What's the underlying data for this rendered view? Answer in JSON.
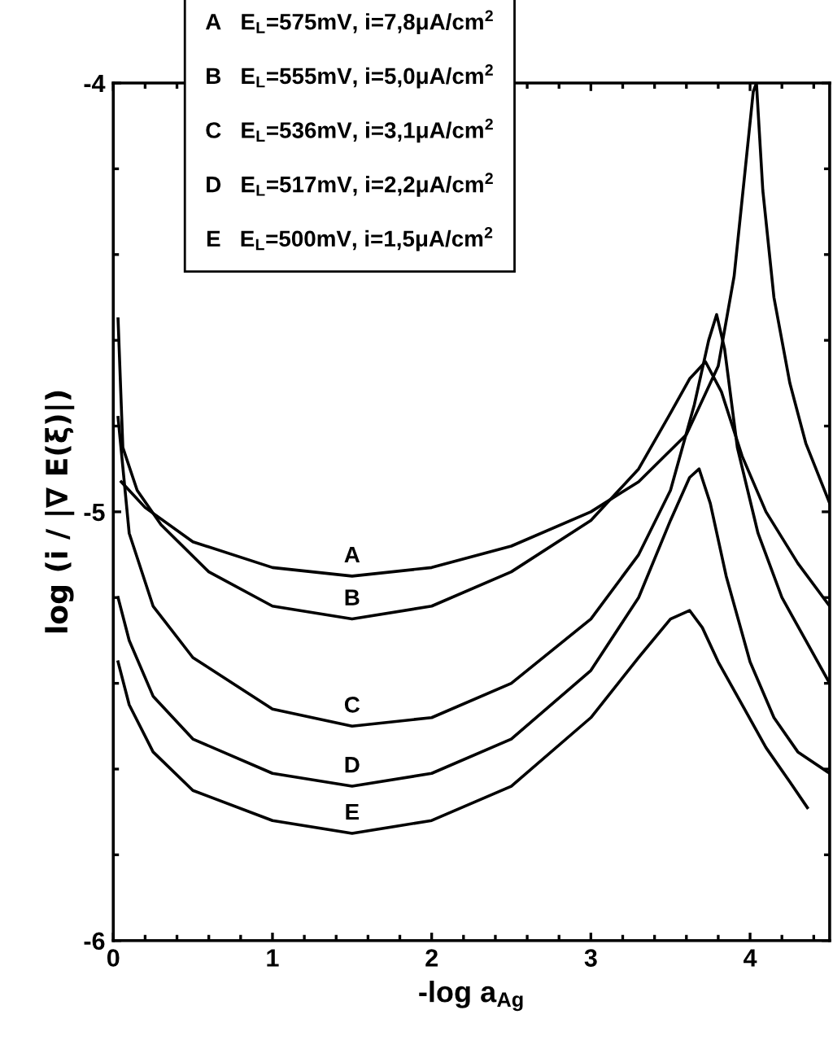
{
  "chart_data": {
    "type": "line",
    "xlabel": "-log a$_{Ag}$",
    "ylabel": "log (i / |∇ E(ξ)|)",
    "xlim": [
      0,
      4.5
    ],
    "ylim": [
      -6,
      -4
    ],
    "xticks": [
      0,
      {
        "value": 0.2,
        "label": null
      },
      {
        "value": 0.4,
        "label": null
      },
      {
        "value": 0.6,
        "label": null
      },
      {
        "value": 0.8,
        "label": null
      },
      1,
      {
        "value": 1.2,
        "label": null
      },
      {
        "value": 1.4,
        "label": null
      },
      {
        "value": 1.6,
        "label": null
      },
      {
        "value": 1.8,
        "label": null
      },
      2,
      {
        "value": 2.2,
        "label": null
      },
      {
        "value": 2.4,
        "label": null
      },
      {
        "value": 2.6,
        "label": null
      },
      {
        "value": 2.8,
        "label": null
      },
      3,
      {
        "value": 3.2,
        "label": null
      },
      {
        "value": 3.4,
        "label": null
      },
      {
        "value": 3.6,
        "label": null
      },
      {
        "value": 3.8,
        "label": null
      },
      4,
      {
        "value": 4.2,
        "label": null
      },
      {
        "value": 4.4,
        "label": null
      }
    ],
    "yticks": [
      -6,
      {
        "value": -5.8,
        "label": null
      },
      {
        "value": -5.6,
        "label": null
      },
      {
        "value": -5.4,
        "label": null
      },
      {
        "value": -5.2,
        "label": null
      },
      -5,
      {
        "value": -4.8,
        "label": null
      },
      {
        "value": -4.6,
        "label": null
      },
      {
        "value": -4.4,
        "label": null
      },
      {
        "value": -4.2,
        "label": null
      },
      -4
    ],
    "grid": false,
    "marker": "none",
    "line_style": "solid",
    "series": [
      {
        "name": "A",
        "color": "#000000",
        "x": [
          0.05,
          0.2,
          0.5,
          1.0,
          1.5,
          2.0,
          2.5,
          3.0,
          3.3,
          3.6,
          3.8,
          3.9,
          3.97,
          4.02,
          4.04,
          4.08,
          4.15,
          4.25,
          4.35,
          4.5
        ],
        "values": [
          -4.93,
          -4.99,
          -5.07,
          -5.13,
          -5.15,
          -5.13,
          -5.08,
          -5.0,
          -4.93,
          -4.82,
          -4.66,
          -4.45,
          -4.2,
          -4.02,
          -4.0,
          -4.25,
          -4.5,
          -4.7,
          -4.84,
          -4.98
        ]
      },
      {
        "name": "B",
        "color": "#000000",
        "x": [
          0.03,
          0.06,
          0.15,
          0.3,
          0.6,
          1.0,
          1.5,
          2.0,
          2.5,
          3.0,
          3.3,
          3.5,
          3.62,
          3.72,
          3.82,
          3.95,
          4.1,
          4.3,
          4.5
        ],
        "values": [
          -4.55,
          -4.85,
          -4.95,
          -5.03,
          -5.14,
          -5.22,
          -5.25,
          -5.22,
          -5.14,
          -5.02,
          -4.9,
          -4.77,
          -4.69,
          -4.65,
          -4.72,
          -4.87,
          -5.0,
          -5.12,
          -5.22
        ]
      },
      {
        "name": "C",
        "color": "#000000",
        "x": [
          0.03,
          0.1,
          0.25,
          0.5,
          1.0,
          1.5,
          2.0,
          2.5,
          3.0,
          3.3,
          3.5,
          3.65,
          3.74,
          3.79,
          3.84,
          3.92,
          4.05,
          4.2,
          4.35,
          4.5
        ],
        "values": [
          -4.78,
          -5.05,
          -5.22,
          -5.34,
          -5.46,
          -5.5,
          -5.48,
          -5.4,
          -5.25,
          -5.1,
          -4.95,
          -4.75,
          -4.6,
          -4.54,
          -4.62,
          -4.85,
          -5.05,
          -5.2,
          -5.3,
          -5.4
        ]
      },
      {
        "name": "D",
        "color": "#000000",
        "x": [
          0.03,
          0.1,
          0.25,
          0.5,
          1.0,
          1.5,
          2.0,
          2.5,
          3.0,
          3.3,
          3.5,
          3.62,
          3.68,
          3.75,
          3.85,
          4.0,
          4.15,
          4.3,
          4.5
        ],
        "values": [
          -5.2,
          -5.3,
          -5.43,
          -5.53,
          -5.61,
          -5.64,
          -5.61,
          -5.53,
          -5.37,
          -5.2,
          -5.02,
          -4.92,
          -4.9,
          -4.98,
          -5.15,
          -5.35,
          -5.48,
          -5.56,
          -5.61
        ]
      },
      {
        "name": "E",
        "color": "#000000",
        "x": [
          0.03,
          0.1,
          0.25,
          0.5,
          1.0,
          1.5,
          2.0,
          2.5,
          3.0,
          3.3,
          3.5,
          3.62,
          3.7,
          3.8,
          3.95,
          4.1,
          4.25,
          4.36
        ],
        "values": [
          -5.35,
          -5.45,
          -5.56,
          -5.65,
          -5.72,
          -5.75,
          -5.72,
          -5.64,
          -5.48,
          -5.34,
          -5.25,
          -5.23,
          -5.27,
          -5.35,
          -5.45,
          -5.55,
          -5.63,
          -5.69
        ]
      }
    ],
    "annotations": [
      "E$_{L}$=575mV, i=7,8μA/cm$^{2}$",
      "E$_{L}$=555mV, i=5,0μA/cm$^{2}$",
      "E$_{L}$=536mV, i=3,1μA/cm$^{2}$",
      "E$_{L}$=517mV, i=2,2μA/cm$^{2}$",
      "E$_{L}$=500mV, i=1,5μA/cm$^{2}$"
    ]
  }
}
